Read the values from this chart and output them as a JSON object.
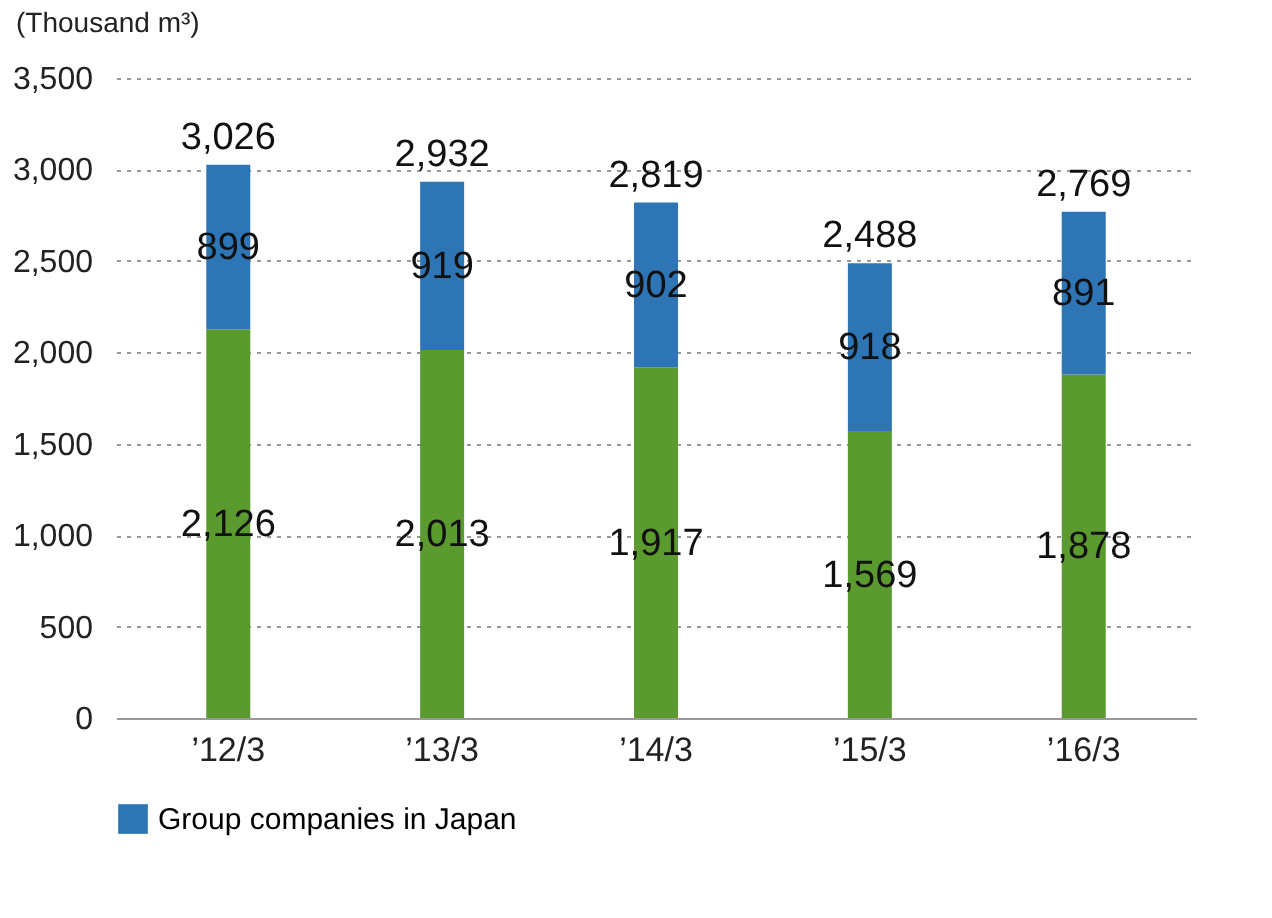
{
  "chart_data": {
    "type": "bar",
    "stacked": true,
    "ylabel": "(Thousand m³)",
    "categories": [
      "’12/3",
      "’13/3",
      "’14/3",
      "’15/3",
      "’16/3"
    ],
    "series": [
      {
        "color": "#5b9a2f",
        "values": [
          2126,
          2013,
          1917,
          1569,
          1878
        ],
        "value_labels": [
          "2,126",
          "2,013",
          "1,917",
          "1,569",
          "1,878"
        ]
      },
      {
        "name": "Group companies in Japan",
        "color": "#2e75b6",
        "values": [
          899,
          919,
          902,
          918,
          891
        ],
        "value_labels": [
          "899",
          "919",
          "902",
          "918",
          "891"
        ]
      }
    ],
    "totals": [
      "3,026",
      "2,932",
      "2,819",
      "2,488",
      "2,769"
    ],
    "ylim": [
      0,
      3500
    ],
    "yticks": [
      0,
      {
        "value": 500,
        "label": "500"
      },
      {
        "value": 1000,
        "label": "1,000"
      },
      {
        "value": 1500,
        "label": "1,500"
      },
      {
        "value": 2000,
        "label": "2,000"
      },
      {
        "value": 2500,
        "label": "2,500"
      },
      {
        "value": 3000,
        "label": "3,000"
      },
      {
        "value": 3500,
        "label": "3,500"
      }
    ],
    "grid": "y",
    "legend": "bottom"
  }
}
